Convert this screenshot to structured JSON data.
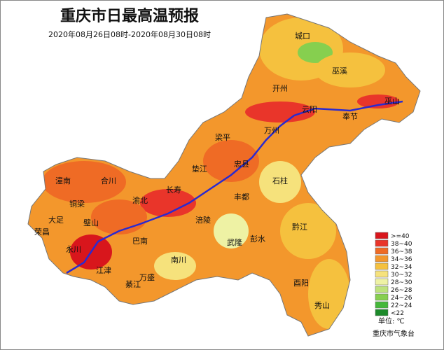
{
  "title": "重庆市日最高温预报",
  "subtitle": "2020年08月26日08时-2020年08月30日08时",
  "places": [
    {
      "name": "城口"
    },
    {
      "name": "巫溪"
    },
    {
      "name": "开州"
    },
    {
      "name": "云阳"
    },
    {
      "name": "奉节"
    },
    {
      "name": "巫山"
    },
    {
      "name": "万州"
    },
    {
      "name": "梁平"
    },
    {
      "name": "忠县"
    },
    {
      "name": "垫江"
    },
    {
      "name": "石柱"
    },
    {
      "name": "丰都"
    },
    {
      "name": "长寿"
    },
    {
      "name": "涪陵"
    },
    {
      "name": "武隆"
    },
    {
      "name": "彭水"
    },
    {
      "name": "黔江"
    },
    {
      "name": "酉阳"
    },
    {
      "name": "秀山"
    },
    {
      "name": "南川"
    },
    {
      "name": "万盛"
    },
    {
      "name": "綦江"
    },
    {
      "name": "江津"
    },
    {
      "name": "巴南"
    },
    {
      "name": "永川"
    },
    {
      "name": "荣昌"
    },
    {
      "name": "大足"
    },
    {
      "name": "璧山"
    },
    {
      "name": "铜梁"
    },
    {
      "name": "合川"
    },
    {
      "name": "潼南"
    },
    {
      "name": "渝北"
    }
  ],
  "legend": {
    "items": [
      {
        "label": ">=40",
        "color": "#d8161c"
      },
      {
        "label": "38~40",
        "color": "#e9352a"
      },
      {
        "label": "36~38",
        "color": "#ef6b25"
      },
      {
        "label": "34~36",
        "color": "#f3972c"
      },
      {
        "label": "32~34",
        "color": "#f5c13e"
      },
      {
        "label": "30~32",
        "color": "#f6e27c"
      },
      {
        "label": "28~30",
        "color": "#eef2a4"
      },
      {
        "label": "26~28",
        "color": "#bde27c"
      },
      {
        "label": "24~26",
        "color": "#86cf4f"
      },
      {
        "label": "22~24",
        "color": "#45b83a"
      },
      {
        "label": "<22",
        "color": "#1c8a2a"
      }
    ],
    "unit": "单位: ℃"
  },
  "source": "重庆市气象台"
}
